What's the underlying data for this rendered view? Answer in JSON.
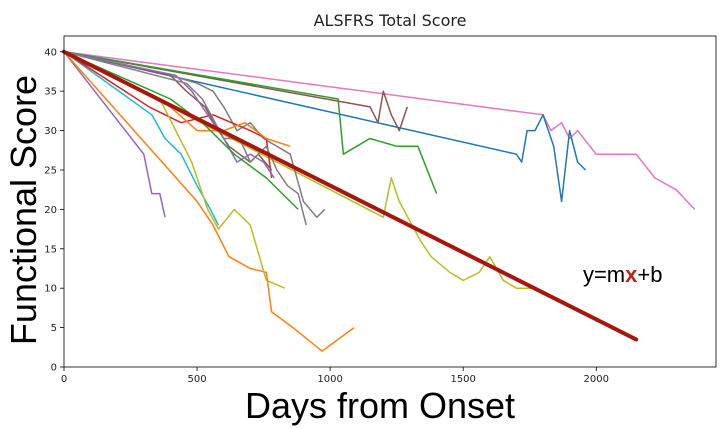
{
  "chart_data": {
    "type": "line",
    "title": "ALSFRS Total Score",
    "xlabel": "Days from Onset",
    "ylabel": "Functional Score",
    "xlim": [
      0,
      2450
    ],
    "ylim": [
      0,
      42
    ],
    "xticks": [
      0,
      500,
      1000,
      1500,
      2000
    ],
    "yticks": [
      0,
      5,
      10,
      15,
      20,
      25,
      30,
      35,
      40
    ],
    "grid": false,
    "annotation": {
      "text_before": "y=m",
      "text_var": "x",
      "text_after": "+b",
      "x": 1950,
      "y": 10.8,
      "var_color": "#c0221b"
    },
    "series": [
      {
        "color": "#e377c2",
        "points": [
          [
            0,
            40
          ],
          [
            1800,
            32
          ],
          [
            1830,
            30
          ],
          [
            1870,
            31
          ],
          [
            1900,
            29
          ],
          [
            1930,
            30
          ],
          [
            2000,
            27
          ],
          [
            2100,
            27
          ],
          [
            2150,
            27
          ],
          [
            2220,
            24
          ],
          [
            2300,
            22.5
          ],
          [
            2370,
            20
          ]
        ]
      },
      {
        "color": "#1f77b4",
        "points": [
          [
            0,
            40
          ],
          [
            1700,
            27
          ],
          [
            1720,
            26
          ],
          [
            1740,
            30
          ],
          [
            1770,
            30
          ],
          [
            1800,
            32
          ],
          [
            1840,
            28
          ],
          [
            1870,
            21
          ],
          [
            1900,
            30
          ],
          [
            1930,
            26
          ],
          [
            1960,
            25
          ]
        ]
      },
      {
        "color": "#8c564b",
        "points": [
          [
            0,
            40
          ],
          [
            1150,
            33
          ],
          [
            1180,
            31
          ],
          [
            1200,
            35
          ],
          [
            1230,
            32
          ],
          [
            1260,
            30
          ],
          [
            1290,
            33
          ]
        ]
      },
      {
        "color": "#2ca02c",
        "points": [
          [
            0,
            40
          ],
          [
            1030,
            34
          ],
          [
            1050,
            27
          ],
          [
            1100,
            28
          ],
          [
            1150,
            29
          ],
          [
            1250,
            28
          ],
          [
            1330,
            28
          ],
          [
            1400,
            22
          ]
        ]
      },
      {
        "color": "#bcbd22",
        "points": [
          [
            0,
            40
          ],
          [
            1200,
            19
          ],
          [
            1230,
            24
          ],
          [
            1260,
            21
          ],
          [
            1340,
            16
          ],
          [
            1380,
            14
          ],
          [
            1450,
            12
          ],
          [
            1500,
            11
          ],
          [
            1560,
            12
          ],
          [
            1600,
            14
          ],
          [
            1650,
            11
          ],
          [
            1700,
            10
          ],
          [
            1760,
            10
          ]
        ]
      },
      {
        "color": "#7f7f7f",
        "points": [
          [
            0,
            40
          ],
          [
            400,
            37
          ],
          [
            500,
            36
          ],
          [
            560,
            35
          ],
          [
            600,
            33
          ],
          [
            650,
            30
          ],
          [
            700,
            31
          ],
          [
            750,
            29
          ],
          [
            800,
            28
          ],
          [
            850,
            27
          ],
          [
            900,
            21
          ],
          [
            950,
            19
          ],
          [
            980,
            20
          ]
        ]
      },
      {
        "color": "#9467bd",
        "points": [
          [
            0,
            40
          ],
          [
            300,
            27
          ],
          [
            330,
            22
          ],
          [
            360,
            22
          ],
          [
            380,
            19
          ]
        ]
      },
      {
        "color": "#17becf",
        "points": [
          [
            0,
            40
          ],
          [
            330,
            32
          ],
          [
            380,
            29
          ],
          [
            440,
            27
          ],
          [
            500,
            23
          ],
          [
            550,
            20
          ],
          [
            580,
            18
          ]
        ]
      },
      {
        "color": "#ff7f0e",
        "points": [
          [
            0,
            40
          ],
          [
            500,
            21
          ],
          [
            560,
            18
          ],
          [
            620,
            14
          ],
          [
            700,
            12.5
          ],
          [
            760,
            12
          ],
          [
            780,
            7
          ],
          [
            860,
            5
          ],
          [
            970,
            2
          ],
          [
            1090,
            5
          ]
        ]
      },
      {
        "color": "#d62728",
        "points": [
          [
            0,
            40
          ],
          [
            320,
            33
          ],
          [
            440,
            31
          ],
          [
            560,
            32
          ],
          [
            700,
            30
          ],
          [
            760,
            29
          ],
          [
            780,
            24
          ]
        ]
      },
      {
        "color": "#bcbd22",
        "points": [
          [
            0,
            40
          ],
          [
            360,
            34
          ],
          [
            420,
            30
          ],
          [
            480,
            26
          ],
          [
            540,
            20
          ],
          [
            580,
            17.5
          ],
          [
            640,
            20
          ],
          [
            700,
            18
          ],
          [
            760,
            11
          ],
          [
            830,
            10
          ]
        ]
      },
      {
        "color": "#ff7f0e",
        "points": [
          [
            0,
            40
          ],
          [
            400,
            33
          ],
          [
            500,
            30
          ],
          [
            600,
            30
          ],
          [
            680,
            31
          ],
          [
            760,
            29
          ],
          [
            850,
            28
          ]
        ]
      },
      {
        "color": "#8c564b",
        "points": [
          [
            0,
            40
          ],
          [
            400,
            37
          ],
          [
            460,
            35
          ],
          [
            530,
            33
          ],
          [
            580,
            30
          ],
          [
            620,
            28
          ],
          [
            660,
            27
          ],
          [
            700,
            26
          ],
          [
            730,
            27
          ],
          [
            780,
            25
          ]
        ]
      },
      {
        "color": "#9467bd",
        "points": [
          [
            0,
            40
          ],
          [
            420,
            37
          ],
          [
            480,
            35
          ],
          [
            540,
            32
          ],
          [
            600,
            29
          ],
          [
            650,
            26
          ],
          [
            700,
            27
          ],
          [
            750,
            26
          ],
          [
            790,
            24
          ]
        ]
      },
      {
        "color": "#2ca02c",
        "points": [
          [
            0,
            40
          ],
          [
            400,
            34
          ],
          [
            520,
            31
          ],
          [
            640,
            27
          ],
          [
            760,
            24
          ],
          [
            880,
            20
          ]
        ]
      },
      {
        "color": "#7f7f7f",
        "points": [
          [
            0,
            40
          ],
          [
            460,
            36
          ],
          [
            520,
            34
          ],
          [
            600,
            29
          ],
          [
            660,
            29
          ],
          [
            700,
            26
          ],
          [
            760,
            28
          ],
          [
            800,
            25
          ],
          [
            840,
            23
          ],
          [
            880,
            22
          ],
          [
            910,
            18
          ]
        ]
      }
    ],
    "trend_line": {
      "color": "#a8150c",
      "points": [
        [
          0,
          40
        ],
        [
          2150,
          3.5
        ]
      ]
    }
  }
}
